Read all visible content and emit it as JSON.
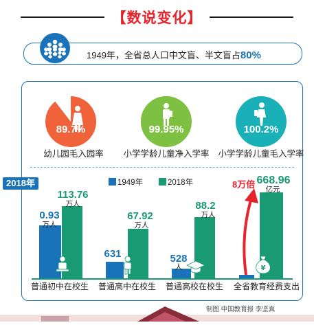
{
  "header": {
    "title": "【数说变化】"
  },
  "fact": {
    "text": "1949年，全省总人口中文盲、半文盲占",
    "value": "80%"
  },
  "circles": [
    {
      "value": "89.7%",
      "label": "幼儿园毛入园率",
      "color": "#f0623a"
    },
    {
      "value": "99.95%",
      "label": "小学学龄儿童净入学率",
      "color": "#7ec142"
    },
    {
      "value": "100.2%",
      "label": "小学学龄儿童毛入学率",
      "color": "#1ab0b8"
    }
  ],
  "year_badge": "2018年",
  "legend": [
    {
      "label": "1949年",
      "color": "#1a73b8"
    },
    {
      "label": "2018年",
      "color": "#1a9a72"
    }
  ],
  "growth_label": "8万倍",
  "credit": "制图  中国教育报  李坚真",
  "chart_data": {
    "type": "bar",
    "categories": [
      "普通初中在校生",
      "普通高中在校生",
      "普通高校在校生",
      "全省教育经费支出"
    ],
    "series": [
      {
        "name": "1949年",
        "labels": [
          "0.93",
          "631",
          "528",
          ""
        ],
        "units": [
          "万人",
          "",
          "人",
          ""
        ]
      },
      {
        "name": "2018年",
        "labels": [
          "113.76",
          "67.92",
          "88.2",
          "668.96"
        ],
        "units": [
          "万人",
          "万人",
          "万人",
          "亿元"
        ]
      }
    ],
    "annotation": "8万倍"
  }
}
